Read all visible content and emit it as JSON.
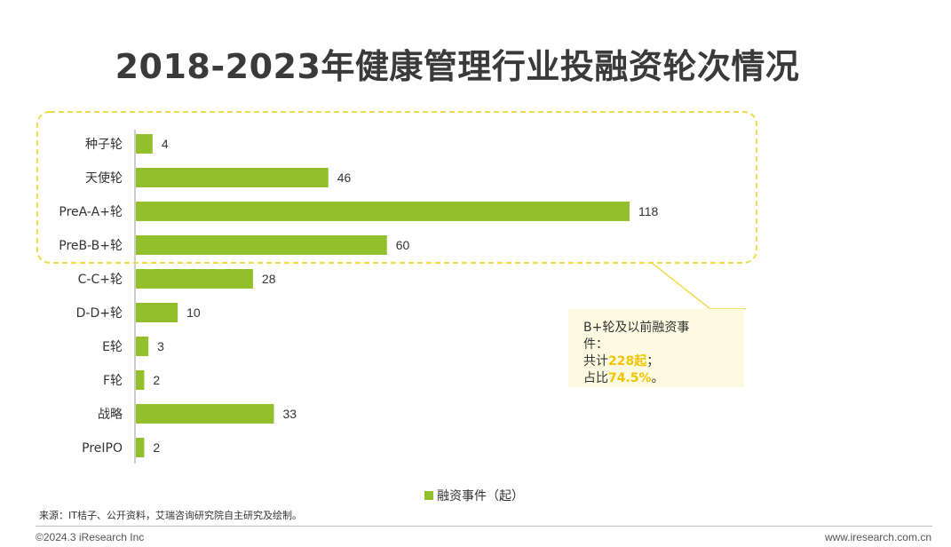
{
  "title": "2018-2023年健康管理行业投融资轮次情况",
  "chart_data": {
    "type": "bar",
    "orientation": "horizontal",
    "title": "2018-2023年健康管理行业投融资轮次情况",
    "categories": [
      "种子轮",
      "天使轮",
      "PreA-A+轮",
      "PreB-B+轮",
      "C-C+轮",
      "D-D+轮",
      "E轮",
      "F轮",
      "战略",
      "PreIPO"
    ],
    "series": [
      {
        "name": "融资事件（起）",
        "values": [
          4,
          46,
          118,
          60,
          28,
          10,
          3,
          2,
          33,
          2
        ]
      }
    ],
    "xlim": [
      0,
      118
    ],
    "legend_position": "bottom",
    "grid": false,
    "bar_color": "#92c02c"
  },
  "callout": {
    "line1": "B+轮及以前融资事",
    "line2": "件：",
    "total_prefix": "共计",
    "total_value": "228起",
    "total_suffix": "；",
    "ratio_prefix": "占比",
    "ratio_value": "74.5%",
    "ratio_suffix": "。"
  },
  "legend": {
    "label": "融资事件（起）"
  },
  "source": "来源：IT桔子、公开资料，艾瑞咨询研究院自主研究及绘制。",
  "footer": {
    "copyright": "©2024.3 iResearch Inc",
    "website": "www.iresearch.com.cn"
  },
  "colors": {
    "bar": "#92c02c",
    "highlight_border": "#f0dc4a",
    "callout_bg": "#fcfbe1",
    "callout_highlight": "#f2c400"
  }
}
